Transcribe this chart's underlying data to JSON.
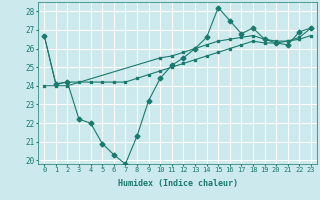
{
  "title": "",
  "xlabel": "Humidex (Indice chaleur)",
  "ylabel": "",
  "xlim": [
    -0.5,
    23.5
  ],
  "ylim": [
    19.8,
    28.5
  ],
  "yticks": [
    20,
    21,
    22,
    23,
    24,
    25,
    26,
    27,
    28
  ],
  "xticks": [
    0,
    1,
    2,
    3,
    4,
    5,
    6,
    7,
    8,
    9,
    10,
    11,
    12,
    13,
    14,
    15,
    16,
    17,
    18,
    19,
    20,
    21,
    22,
    23
  ],
  "bg_color": "#cce9ed",
  "grid_color": "#ffffff",
  "line_color": "#1a7a6e",
  "lines": [
    {
      "x": [
        0,
        1,
        2,
        3,
        4,
        5,
        6,
        7,
        8,
        9,
        10,
        11,
        12,
        13,
        14,
        15,
        16,
        17,
        18,
        19,
        20,
        21,
        22,
        23
      ],
      "y": [
        26.7,
        24.1,
        24.2,
        22.2,
        22.0,
        20.9,
        20.3,
        19.8,
        21.3,
        23.2,
        24.4,
        25.1,
        25.5,
        26.0,
        26.6,
        28.2,
        27.5,
        26.8,
        27.1,
        26.5,
        26.3,
        26.2,
        26.9,
        27.1
      ],
      "marker": "D",
      "markersize": 2.5
    },
    {
      "x": [
        0,
        1,
        2,
        3,
        4,
        5,
        6,
        7,
        8,
        9,
        10,
        11,
        12,
        13,
        14,
        15,
        16,
        17,
        18,
        19,
        20,
        21,
        22,
        23
      ],
      "y": [
        26.7,
        24.1,
        24.2,
        24.2,
        24.2,
        24.2,
        24.2,
        24.2,
        24.4,
        24.6,
        24.8,
        25.0,
        25.2,
        25.4,
        25.6,
        25.8,
        26.0,
        26.2,
        26.4,
        26.3,
        26.3,
        26.4,
        26.5,
        26.7
      ],
      "marker": "s",
      "markersize": 1.5
    },
    {
      "x": [
        0,
        1,
        2,
        10,
        11,
        12,
        13,
        14,
        15,
        16,
        17,
        18,
        19,
        20,
        21,
        22,
        23
      ],
      "y": [
        24.0,
        24.0,
        24.0,
        25.5,
        25.6,
        25.8,
        26.0,
        26.2,
        26.4,
        26.5,
        26.6,
        26.7,
        26.5,
        26.4,
        26.4,
        26.6,
        27.1
      ],
      "marker": "s",
      "markersize": 1.5
    }
  ]
}
